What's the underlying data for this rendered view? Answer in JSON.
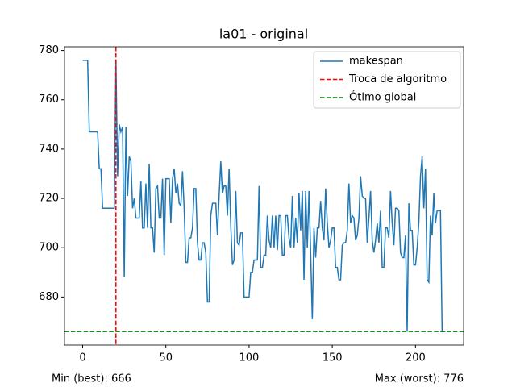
{
  "chart_data": {
    "type": "line",
    "title": "la01 - original",
    "x": [
      0,
      1,
      2,
      3,
      4,
      5,
      6,
      7,
      8,
      9,
      10,
      11,
      12,
      13,
      14,
      15,
      16,
      17,
      18,
      19,
      20,
      21,
      22,
      23,
      24,
      25,
      26,
      27,
      28,
      29,
      30,
      31,
      32,
      33,
      34,
      35,
      36,
      37,
      38,
      39,
      40,
      41,
      42,
      43,
      44,
      45,
      46,
      47,
      48,
      49,
      50,
      51,
      52,
      53,
      54,
      55,
      56,
      57,
      58,
      59,
      60,
      61,
      62,
      63,
      64,
      65,
      66,
      67,
      68,
      69,
      70,
      71,
      72,
      73,
      74,
      75,
      76,
      77,
      78,
      79,
      80,
      81,
      82,
      83,
      84,
      85,
      86,
      87,
      88,
      89,
      90,
      91,
      92,
      93,
      94,
      95,
      96,
      97,
      98,
      99,
      100,
      101,
      102,
      103,
      104,
      105,
      106,
      107,
      108,
      109,
      110,
      111,
      112,
      113,
      114,
      115,
      116,
      117,
      118,
      119,
      120,
      121,
      122,
      123,
      124,
      125,
      126,
      127,
      128,
      129,
      130,
      131,
      132,
      133,
      134,
      135,
      136,
      137,
      138,
      139,
      140,
      141,
      142,
      143,
      144,
      145,
      146,
      147,
      148,
      149,
      150,
      151,
      152,
      153,
      154,
      155,
      156,
      157,
      158,
      159,
      160,
      161,
      162,
      163,
      164,
      165,
      166,
      167,
      168,
      169,
      170,
      171,
      172,
      173,
      174,
      175,
      176,
      177,
      178,
      179,
      180,
      181,
      182,
      183,
      184,
      185,
      186,
      187,
      188,
      189,
      190,
      191,
      192,
      193,
      194,
      195,
      196,
      197,
      198,
      199,
      200,
      201,
      202,
      203,
      204,
      205,
      206,
      207,
      208,
      209,
      210,
      211,
      212,
      213,
      214,
      215,
      216,
      217,
      218
    ],
    "series": [
      {
        "name": "makespan",
        "color": "#1f77b4",
        "values": [
          776,
          776,
          776,
          776,
          747,
          747,
          747,
          747,
          747,
          747,
          732,
          732,
          716,
          716,
          716,
          716,
          716,
          716,
          716,
          716,
          776,
          729,
          750,
          747,
          749,
          688,
          749,
          721,
          737,
          735,
          716,
          720,
          712,
          712,
          712,
          727,
          708,
          708,
          726,
          708,
          734,
          708,
          708,
          698,
          724,
          725,
          712,
          712,
          728,
          697,
          728,
          728,
          728,
          710,
          728,
          732,
          722,
          726,
          718,
          717,
          731,
          716,
          694,
          694,
          704,
          704,
          708,
          724,
          724,
          702,
          695,
          695,
          702,
          702,
          698,
          678,
          678,
          713,
          718,
          718,
          718,
          705,
          721,
          735,
          722,
          725,
          725,
          713,
          732,
          709,
          693,
          695,
          723,
          702,
          701,
          706,
          706,
          680,
          680,
          680,
          680,
          690,
          690,
          695,
          695,
          695,
          725,
          692,
          692,
          697,
          697,
          713,
          703,
          700,
          713,
          700,
          713,
          699,
          713,
          713,
          697,
          697,
          713,
          713,
          704,
          700,
          721,
          700,
          712,
          702,
          722,
          707,
          723,
          687,
          723,
          700,
          723,
          698,
          671,
          708,
          696,
          708,
          708,
          719,
          708,
          703,
          724,
          710,
          700,
          703,
          708,
          708,
          692,
          692,
          687,
          687,
          701,
          702,
          702,
          707,
          726,
          710,
          713,
          712,
          703,
          705,
          712,
          729,
          721,
          720,
          720,
          702,
          712,
          723,
          703,
          698,
          703,
          710,
          702,
          715,
          692,
          692,
          708,
          708,
          704,
          723,
          710,
          701,
          716,
          716,
          715,
          698,
          696,
          696,
          705,
          666,
          718,
          707,
          707,
          693,
          693,
          700,
          710,
          729,
          737,
          716,
          732,
          687,
          686,
          713,
          705,
          722,
          710,
          715,
          715,
          715,
          666,
          666,
          666
        ]
      }
    ],
    "vline": {
      "name": "Troca de algoritmo",
      "value": 20,
      "color": "#ff0000"
    },
    "hline": {
      "name": "Ótimo global",
      "value": 666,
      "color": "#008000"
    },
    "xlim": [
      -10.9,
      228.9
    ],
    "ylim": [
      660.5,
      781.5
    ],
    "xticks": [
      0,
      50,
      100,
      150,
      200
    ],
    "yticks": [
      680,
      700,
      720,
      740,
      760,
      780
    ],
    "legend": "upper right",
    "annotations": [
      "Min (best): 666",
      "Max (worst): 776"
    ]
  }
}
